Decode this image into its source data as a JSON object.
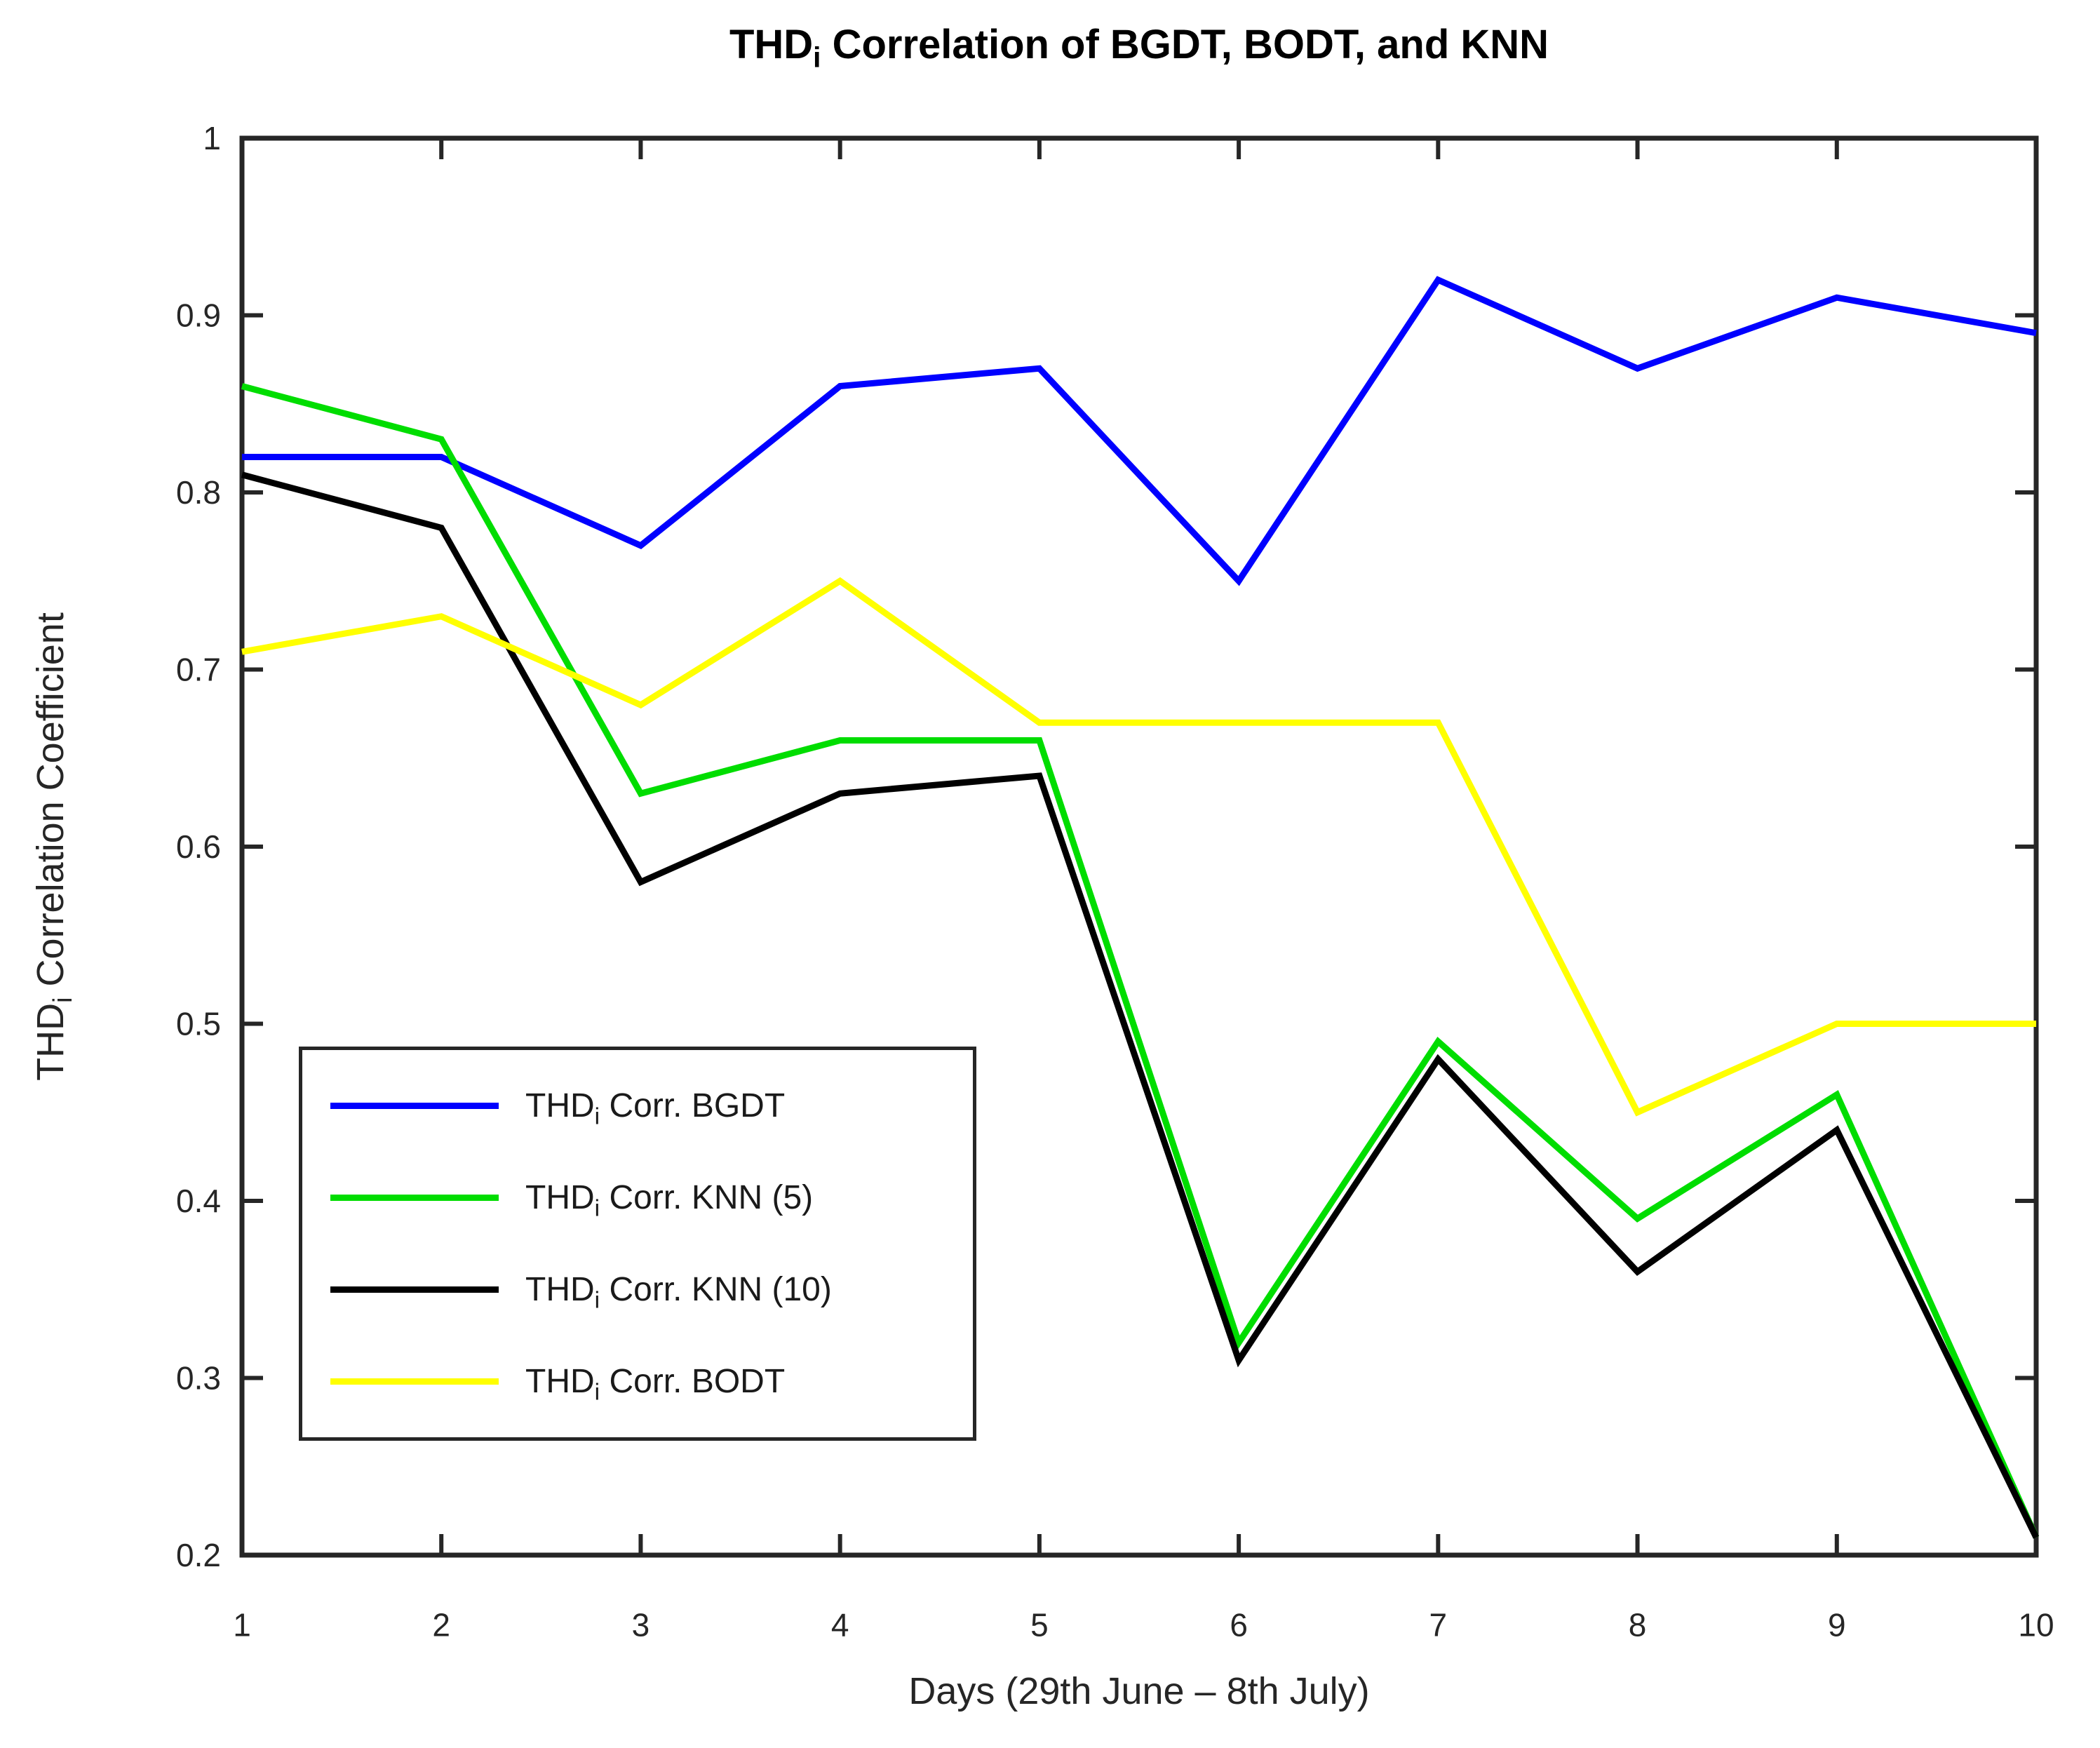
{
  "chart_data": {
    "type": "line",
    "title": {
      "pre": "THD",
      "sub": "i",
      "post": " Correlation of BGDT, BODT, and KNN"
    },
    "xlabel": "Days (29th June – 8th July)",
    "ylabel": {
      "pre": "THD",
      "sub": "i",
      "post": " Correlation Coefficient"
    },
    "x": [
      1,
      2,
      3,
      4,
      5,
      6,
      7,
      8,
      9,
      10
    ],
    "x_tick_labels": [
      "1",
      "2",
      "3",
      "4",
      "5",
      "6",
      "7",
      "8",
      "9",
      "10"
    ],
    "y_ticks": [
      0.2,
      0.3,
      0.4,
      0.5,
      0.6,
      0.7,
      0.8,
      0.9,
      1.0
    ],
    "y_tick_labels": [
      "0.2",
      "0.3",
      "0.4",
      "0.5",
      "0.6",
      "0.7",
      "0.8",
      "0.9",
      "1"
    ],
    "xlim": [
      1,
      10
    ],
    "ylim": [
      0.2,
      1.0
    ],
    "grid": false,
    "legend_position": "inside-lower-left",
    "axis_color": "#262626",
    "series": [
      {
        "name": {
          "pre": "THD",
          "sub": "i",
          "post": " Corr. BGDT"
        },
        "color": "#0000ff",
        "values": [
          0.82,
          0.82,
          0.77,
          0.86,
          0.87,
          0.75,
          0.92,
          0.87,
          0.91,
          0.89
        ]
      },
      {
        "name": {
          "pre": "THD",
          "sub": "i",
          "post": " Corr. KNN (5)"
        },
        "color": "#00dd00",
        "values": [
          0.86,
          0.83,
          0.63,
          0.66,
          0.66,
          0.32,
          0.49,
          0.39,
          0.46,
          0.21
        ]
      },
      {
        "name": {
          "pre": "THD",
          "sub": "i",
          "post": " Corr. KNN (10)"
        },
        "color": "#000000",
        "values": [
          0.81,
          0.78,
          0.58,
          0.63,
          0.64,
          0.31,
          0.48,
          0.36,
          0.44,
          0.21
        ]
      },
      {
        "name": {
          "pre": "THD",
          "sub": "i",
          "post": " Corr. BODT"
        },
        "color": "#ffff00",
        "values": [
          0.71,
          0.73,
          0.68,
          0.75,
          0.67,
          0.67,
          0.67,
          0.45,
          0.5,
          0.5
        ]
      }
    ]
  }
}
